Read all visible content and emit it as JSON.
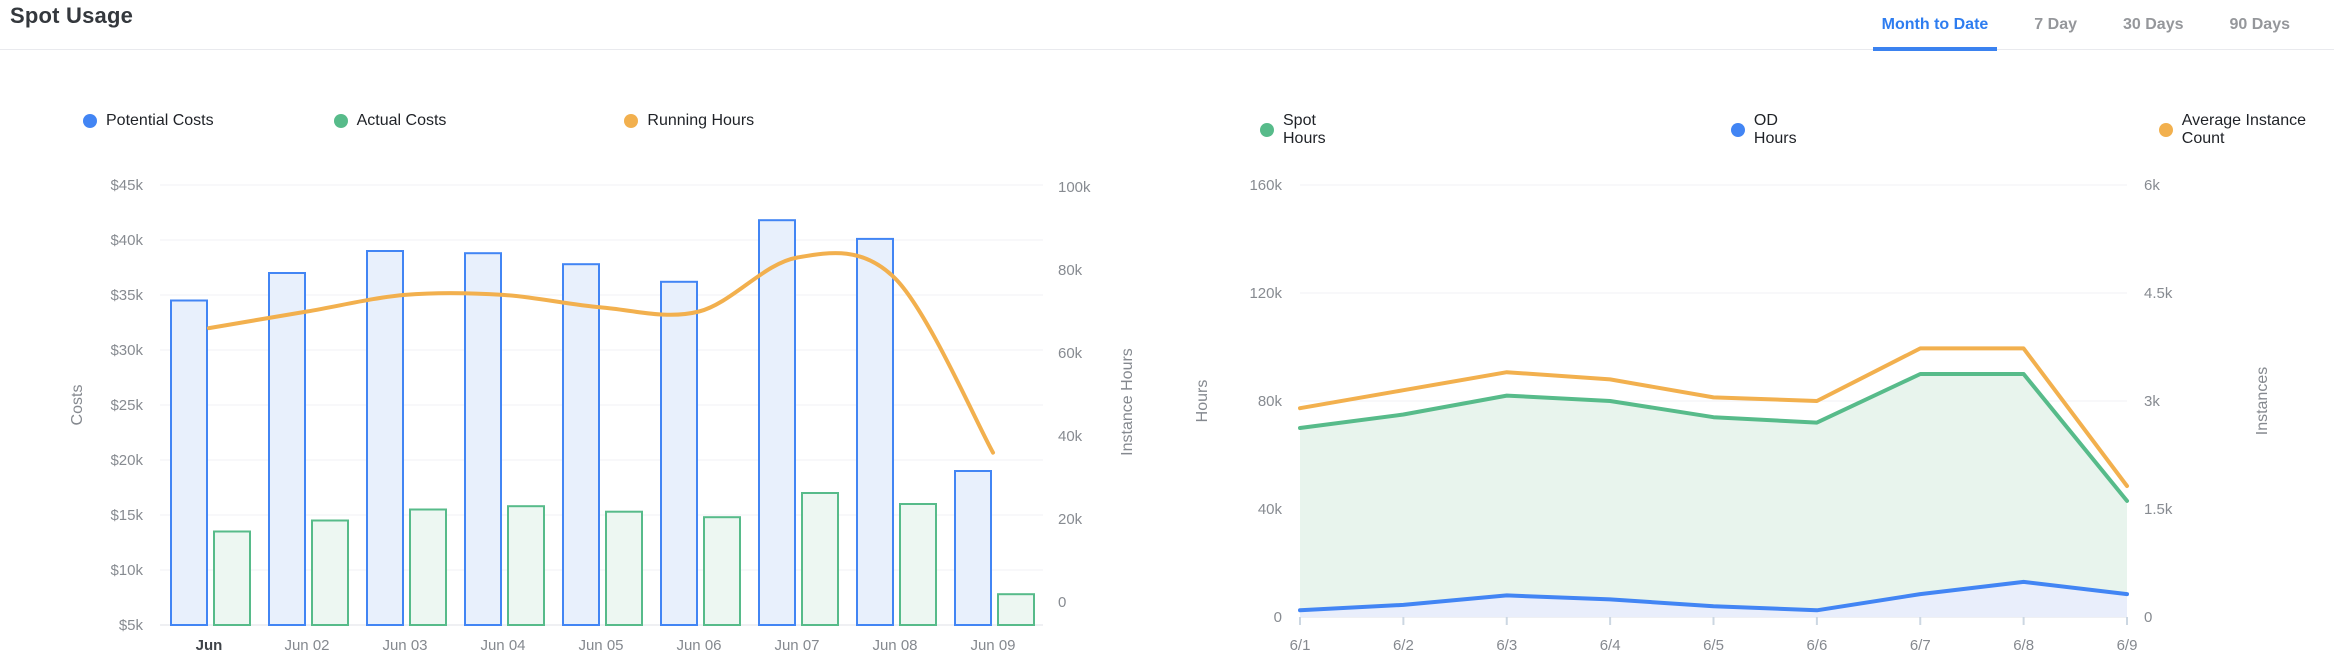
{
  "header": {
    "title": "Spot Usage",
    "tabs": [
      {
        "label": "Month to Date",
        "active": true
      },
      {
        "label": "7 Day",
        "active": false
      },
      {
        "label": "30 Days",
        "active": false
      },
      {
        "label": "90 Days",
        "active": false
      }
    ]
  },
  "colors": {
    "blue": "#4285f4",
    "blue_bar_fill": "#e8f0fc",
    "blue_area_fill": "#e9eefb",
    "green": "#57bb8a",
    "green_bar_fill": "#edf7f2",
    "green_area_fill": "#e8f4ed",
    "orange": "#f2b04e",
    "gridline": "#f0f1f4",
    "axis_line": "#dfe2e7",
    "x_tick_mark": "#ccd7e2",
    "active_tab": "#2e7df0"
  },
  "chart_data": [
    {
      "id": "costs-chart",
      "type": "bar",
      "title": "",
      "categories": [
        "Jun",
        "Jun 02",
        "Jun 03",
        "Jun 04",
        "Jun 05",
        "Jun 06",
        "Jun 07",
        "Jun 08",
        "Jun 09"
      ],
      "series": [
        {
          "name": "Potential Costs",
          "type": "bar",
          "axis": "left",
          "color": "#4285f4",
          "fill": "#e8f0fc",
          "values": [
            34500,
            37000,
            39000,
            38800,
            37800,
            36200,
            41800,
            40100,
            19000
          ]
        },
        {
          "name": "Actual Costs",
          "type": "bar",
          "axis": "left",
          "color": "#57bb8a",
          "fill": "#edf7f2",
          "values": [
            13500,
            14500,
            15500,
            15800,
            15300,
            14800,
            17000,
            16000,
            7800
          ]
        },
        {
          "name": "Running Hours",
          "type": "line",
          "axis": "right",
          "color": "#f2b04e",
          "values": [
            66000,
            70000,
            74000,
            74000,
            71000,
            70000,
            83000,
            78000,
            36000
          ]
        }
      ],
      "y_left": {
        "label": "Costs",
        "min": 5000,
        "max": 45000,
        "ticks": [
          "$45k",
          "$40k",
          "$35k",
          "$30k",
          "$25k",
          "$20k",
          "$15k",
          "$10k",
          "$5k"
        ]
      },
      "y_right": {
        "label": "Instance Hours",
        "min": 0,
        "max": 100000,
        "ticks": [
          "100k",
          "80k",
          "60k",
          "40k",
          "20k",
          "0"
        ]
      },
      "legend_position": "top-left",
      "grid": true
    },
    {
      "id": "usage-chart",
      "type": "area",
      "title": "",
      "x": [
        "6/1",
        "6/2",
        "6/3",
        "6/4",
        "6/5",
        "6/6",
        "6/7",
        "6/8",
        "6/9"
      ],
      "series": [
        {
          "name": "Spot Hours",
          "type": "area",
          "axis": "left",
          "color": "#57bb8a",
          "fill": "#e8f4ed",
          "values": [
            70000,
            75000,
            82000,
            80000,
            74000,
            72000,
            90000,
            90000,
            43000
          ]
        },
        {
          "name": "OD Hours",
          "type": "area",
          "axis": "left",
          "color": "#4285f4",
          "fill": "#e9eefb",
          "values": [
            2500,
            4500,
            8000,
            6500,
            4000,
            2500,
            8500,
            13000,
            8500
          ]
        },
        {
          "name": "Average Instance Count",
          "type": "line",
          "axis": "right",
          "color": "#f2b04e",
          "values": [
            2900,
            3150,
            3400,
            3300,
            3050,
            3000,
            3730,
            3730,
            1820
          ]
        }
      ],
      "y_left": {
        "label": "Hours",
        "min": 0,
        "max": 160000,
        "ticks": [
          "160k",
          "120k",
          "80k",
          "40k",
          "0"
        ]
      },
      "y_right": {
        "label": "Instances",
        "min": 0,
        "max": 6000,
        "ticks": [
          "6k",
          "4.5k",
          "3k",
          "1.5k",
          "0"
        ]
      },
      "legend_position": "top-left",
      "grid": true
    }
  ]
}
